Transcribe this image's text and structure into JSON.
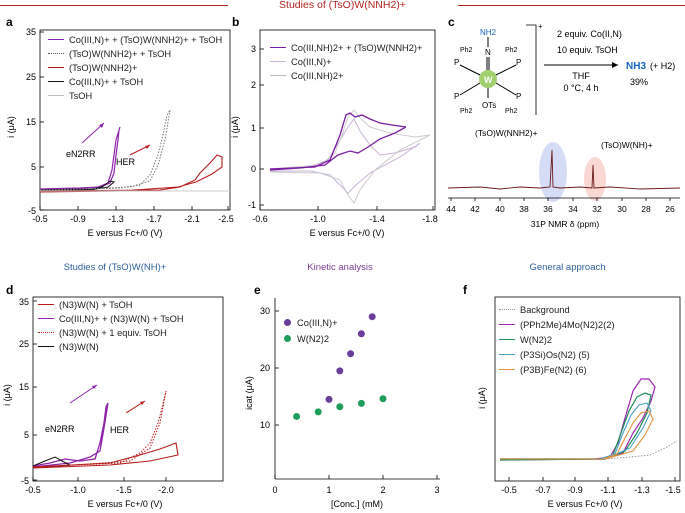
{
  "header": {
    "title": "Studies of (TsO)W(NNH2)+"
  },
  "sections": {
    "middle_left": "Studies of (TsO)W(NH)+",
    "middle_center": "Kinetic analysis",
    "middle_right": "General approach"
  },
  "panels": {
    "a": {
      "label": "a",
      "ylabel": "i (μA)",
      "xlabel": "E versus Fc+/0 (V)",
      "xticks": [
        "-0.5",
        "-0.9",
        "-1.3",
        "-1.7",
        "-2.1",
        "-2.5"
      ],
      "yticks": [
        "35",
        "25",
        "15",
        "5",
        "-5"
      ],
      "legend": [
        {
          "text": "Co(III,N)+ + (TsO)W(NNH2)+ + TsOH",
          "color": "#8e24aa",
          "style": "solid"
        },
        {
          "text": "(TsO)W(NNH2)+ + TsOH",
          "color": "#555555",
          "style": "dotted"
        },
        {
          "text": "(TsO)W(NNH2)+",
          "color": "#b71c1c",
          "style": "solid"
        },
        {
          "text": "Co(III,N)+ + TsOH",
          "color": "#111111",
          "style": "solid"
        },
        {
          "text": "TsOH",
          "color": "#bbbbbb",
          "style": "solid"
        }
      ],
      "annotations": [
        "eN2RR",
        "HER"
      ]
    },
    "b": {
      "label": "b",
      "ylabel": "i (μA)",
      "xlabel": "E versus Fc+/0 (V)",
      "xticks": [
        "-0.6",
        "-1.0",
        "-1.4",
        "-1.8"
      ],
      "yticks": [
        "3",
        "2",
        "1",
        "0",
        "-1"
      ],
      "legend": [
        {
          "text": "Co(III,NH)2+ + (TsO)W(NNH2)+",
          "color": "#7b1fa2"
        },
        {
          "text": "Co(III,N)+",
          "color": "#c9b3d6"
        },
        {
          "text": "Co(III,NH)2+",
          "color": "#bbbbbb"
        }
      ]
    },
    "c": {
      "label": "c",
      "reagents": [
        "2 equiv. Co(II,N)",
        "10 equiv. TsOH"
      ],
      "conditions": [
        "THF",
        "0 °C, 4 h"
      ],
      "product": "NH3",
      "product_extra": "(+ H2)",
      "yield": "39%",
      "structure_labels": {
        "nh2": "NH2",
        "n": "N",
        "w": "W",
        "ots": "OTs",
        "p": "P",
        "ph2": "Ph2",
        "charge": "+"
      },
      "nmr_labels": [
        "(TsO)W(NNH2)+",
        "(TsO)W(NH)+"
      ],
      "xticks": [
        "44",
        "42",
        "40",
        "38",
        "36",
        "34",
        "32",
        "30",
        "28",
        "26"
      ],
      "xlabel": "31P NMR δ (ppm)"
    },
    "d": {
      "label": "d",
      "ylabel": "i (μA)",
      "xlabel": "E versus Fc+/0 (V)",
      "xticks": [
        "-0.5",
        "-1.0",
        "-1.5",
        "-2.0"
      ],
      "yticks": [
        "35",
        "25",
        "15",
        "5",
        "-5"
      ],
      "legend": [
        {
          "text": "(N3)W(N) + TsOH",
          "color": "#b71c1c",
          "style": "solid"
        },
        {
          "text": "Co(III,N)+ + (N3)W(N) + TsOH",
          "color": "#8e24aa",
          "style": "solid"
        },
        {
          "text": "(N3)W(N) + 1 equiv. TsOH",
          "color": "#b71c1c",
          "style": "dotted"
        },
        {
          "text": "(N3)W(N)",
          "color": "#111111",
          "style": "solid"
        }
      ],
      "annotations": [
        "eN2RR",
        "HER"
      ]
    },
    "e": {
      "label": "e",
      "ylabel": "icat (μA)",
      "xlabel": "[Conc.] (mM)",
      "xticks": [
        "0",
        "1",
        "2",
        "3"
      ],
      "yticks": [
        "30",
        "20",
        "10"
      ],
      "legend": [
        {
          "text": "Co(III,N)+",
          "color": "#6a3d9a"
        },
        {
          "text": "W(N2)2",
          "color": "#1e9e5a"
        }
      ]
    },
    "f": {
      "label": "f",
      "ylabel": "i (μA)",
      "xlabel": "E versus Fc+/0 (V)",
      "xticks": [
        "-0.5",
        "-0.7",
        "-0.9",
        "-1.1",
        "-1.3",
        "-1.5"
      ],
      "legend": [
        {
          "text": "Background",
          "color": "#999999",
          "style": "dotted"
        },
        {
          "text": "(PPh2Me)4Mo(N2)2(2)",
          "color": "#9c27b0",
          "style": "solid"
        },
        {
          "text": "W(N2)2",
          "color": "#1e8e5a",
          "style": "solid"
        },
        {
          "text": "(P3Si)Os(N2) (5)",
          "color": "#4aa3c8",
          "style": "solid"
        },
        {
          "text": "(P3B)Fe(N2) (6)",
          "color": "#e0913a",
          "style": "solid"
        }
      ]
    }
  },
  "chart_data": [
    {
      "type": "scatter",
      "panel": "e",
      "xlabel": "[Conc.] (mM)",
      "ylabel": "icat (μA)",
      "xlim": [
        0,
        3
      ],
      "ylim": [
        5,
        35
      ],
      "series": [
        {
          "name": "Co(III,N)+",
          "color": "#6a3d9a",
          "x": [
            1.0,
            1.2,
            1.4,
            1.6,
            1.8
          ],
          "y": [
            14.5,
            19.5,
            22.5,
            26,
            29
          ]
        },
        {
          "name": "W(N2)2",
          "color": "#1e9e5a",
          "x": [
            0.4,
            0.8,
            1.2,
            1.6,
            2.0
          ],
          "y": [
            11.5,
            12.3,
            13.2,
            13.8,
            14.6
          ]
        }
      ]
    }
  ]
}
